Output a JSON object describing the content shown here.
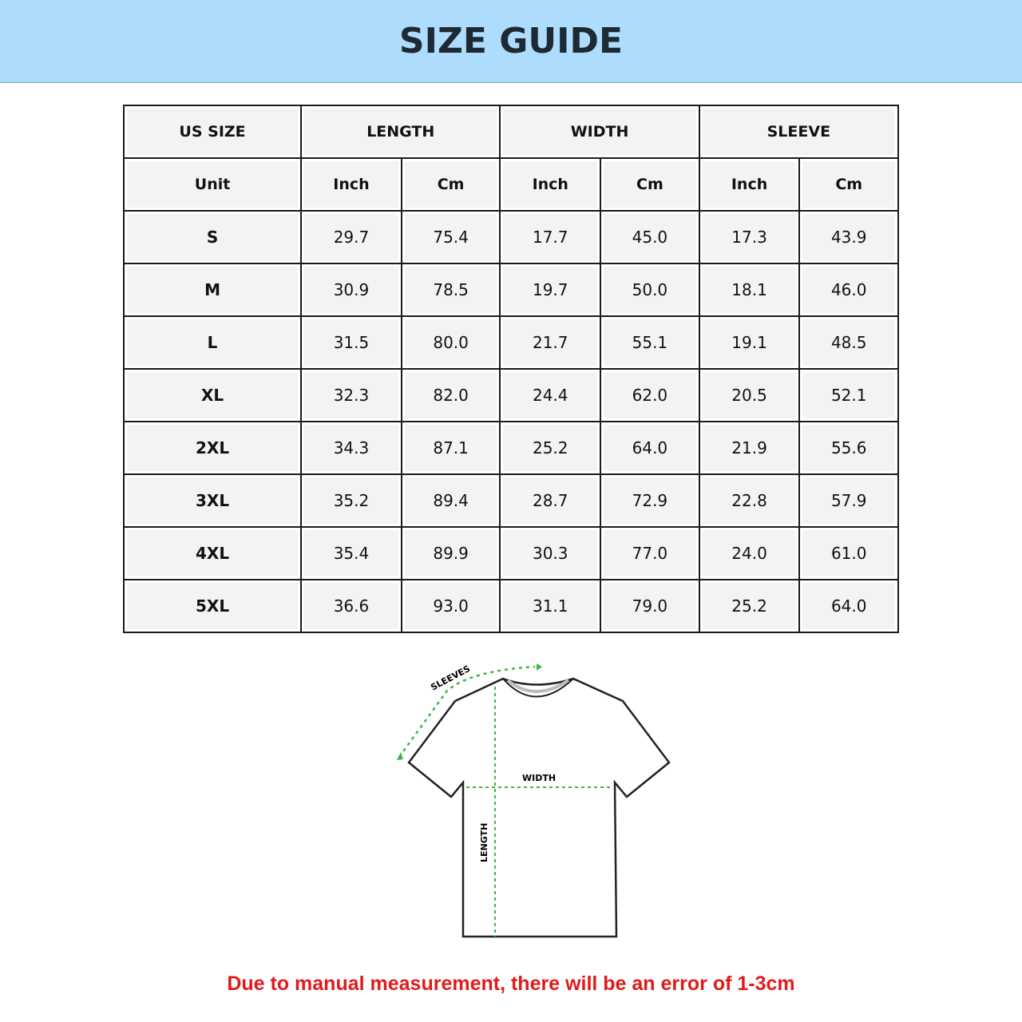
{
  "title": "SIZE GUIDE",
  "table": {
    "group_headers": [
      "US SIZE",
      "LENGTH",
      "WIDTH",
      "SLEEVE"
    ],
    "unit_row": [
      "Unit",
      "Inch",
      "Cm",
      "Inch",
      "Cm",
      "Inch",
      "Cm"
    ],
    "rows": [
      [
        "S",
        "29.7",
        "75.4",
        "17.7",
        "45.0",
        "17.3",
        "43.9"
      ],
      [
        "M",
        "30.9",
        "78.5",
        "19.7",
        "50.0",
        "18.1",
        "46.0"
      ],
      [
        "L",
        "31.5",
        "80.0",
        "21.7",
        "55.1",
        "19.1",
        "48.5"
      ],
      [
        "XL",
        "32.3",
        "82.0",
        "24.4",
        "62.0",
        "20.5",
        "52.1"
      ],
      [
        "2XL",
        "34.3",
        "87.1",
        "25.2",
        "64.0",
        "21.9",
        "55.6"
      ],
      [
        "3XL",
        "35.2",
        "89.4",
        "28.7",
        "72.9",
        "22.8",
        "57.9"
      ],
      [
        "4XL",
        "35.4",
        "89.9",
        "30.3",
        "77.0",
        "24.0",
        "61.0"
      ],
      [
        "5XL",
        "36.6",
        "93.0",
        "31.1",
        "79.0",
        "25.2",
        "64.0"
      ]
    ]
  },
  "diagram": {
    "sleeves_label": "SLEEVES",
    "width_label": "WIDTH",
    "length_label": "LENGTH",
    "arrow_color": "#3cb44b"
  },
  "note": "Due to manual measurement, there will be an error of 1-3cm",
  "colors": {
    "banner": "#addcfc",
    "note": "#e01b1b"
  }
}
